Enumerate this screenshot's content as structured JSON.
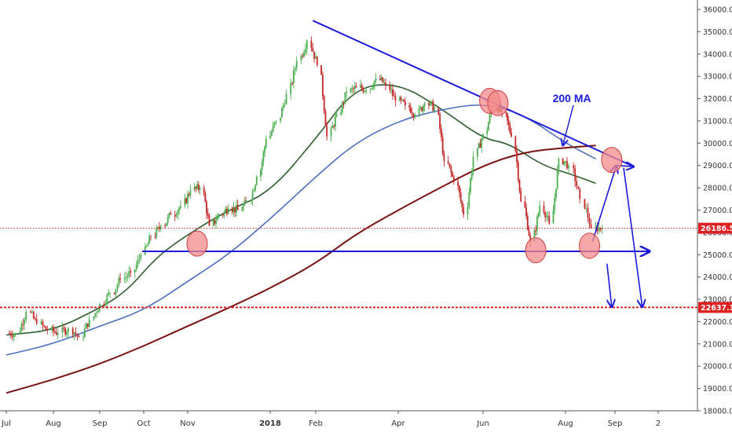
{
  "chart_data": {
    "type": "candlestick",
    "title": "",
    "xlabel": "",
    "ylabel": "",
    "ylim": [
      18000,
      36250
    ],
    "x_range": [
      "2017-07-01",
      "2018-09-25"
    ],
    "x_ticks": [
      {
        "label": "Jul",
        "date": "2017-07-01"
      },
      {
        "label": "Aug",
        "date": "2017-08-01"
      },
      {
        "label": "Sep",
        "date": "2017-09-01"
      },
      {
        "label": "Oct",
        "date": "2017-10-01"
      },
      {
        "label": "Nov",
        "date": "2017-11-01"
      },
      {
        "label": "2018",
        "date": "2018-01-01",
        "bold": true
      },
      {
        "label": "Feb",
        "date": "2018-02-01"
      },
      {
        "label": "Apr",
        "date": "2018-04-01"
      },
      {
        "label": "Jun",
        "date": "2018-06-01"
      },
      {
        "label": "Aug",
        "date": "2018-08-01"
      },
      {
        "label": "Sep",
        "date": "2018-09-01"
      },
      {
        "label": "2",
        "date": "2018-10-01"
      }
    ],
    "y_ticks": [
      18000,
      19000,
      20000,
      21000,
      22000,
      23000,
      24000,
      25000,
      26000,
      27000,
      28000,
      29000,
      30000,
      31000,
      32000,
      33000,
      34000,
      35000,
      36000
    ],
    "colors": {
      "up": "#4caf50",
      "down": "#c62828",
      "trend": "#1a1adb",
      "ma_short": "#2e5e2e",
      "ma_mid": "#4a6fc0",
      "ma_200": "#7a1010",
      "level": "#e02020",
      "circle_fill": "#f48a8a",
      "circle_stroke": "#d04040"
    },
    "close_series": [
      [
        "2017-07-03",
        21480
      ],
      [
        "2017-07-10",
        22450
      ],
      [
        "2017-07-17",
        21900
      ],
      [
        "2017-07-24",
        21600
      ],
      [
        "2017-07-31",
        21500
      ],
      [
        "2017-08-07",
        21700
      ],
      [
        "2017-08-14",
        21300
      ],
      [
        "2017-08-21",
        22100
      ],
      [
        "2017-08-28",
        22800
      ],
      [
        "2017-09-04",
        23300
      ],
      [
        "2017-09-11",
        23900
      ],
      [
        "2017-09-18",
        24200
      ],
      [
        "2017-09-25",
        25000
      ],
      [
        "2017-10-02",
        25800
      ],
      [
        "2017-10-09",
        26300
      ],
      [
        "2017-10-16",
        26800
      ],
      [
        "2017-10-23",
        27200
      ],
      [
        "2017-10-30",
        27900
      ],
      [
        "2017-11-06",
        28000
      ],
      [
        "2017-11-13",
        26300
      ],
      [
        "2017-11-20",
        26800
      ],
      [
        "2017-11-27",
        27100
      ],
      [
        "2017-12-04",
        27000
      ],
      [
        "2017-12-11",
        27400
      ],
      [
        "2017-12-18",
        28500
      ],
      [
        "2017-12-25",
        30200
      ],
      [
        "2018-01-01",
        31000
      ],
      [
        "2018-01-08",
        32200
      ],
      [
        "2018-01-15",
        33700
      ],
      [
        "2018-01-22",
        34600
      ],
      [
        "2018-01-29",
        33500
      ],
      [
        "2018-02-05",
        30300
      ],
      [
        "2018-02-12",
        31300
      ],
      [
        "2018-02-19",
        32300
      ],
      [
        "2018-02-26",
        32500
      ],
      [
        "2018-03-05",
        32400
      ],
      [
        "2018-03-12",
        32900
      ],
      [
        "2018-03-19",
        32600
      ],
      [
        "2018-03-26",
        31900
      ],
      [
        "2018-04-02",
        31700
      ],
      [
        "2018-04-09",
        31300
      ],
      [
        "2018-04-16",
        31800
      ],
      [
        "2018-04-23",
        31600
      ],
      [
        "2018-04-30",
        29200
      ],
      [
        "2018-05-07",
        28300
      ],
      [
        "2018-05-14",
        26800
      ],
      [
        "2018-05-21",
        29400
      ],
      [
        "2018-05-28",
        30400
      ],
      [
        "2018-06-04",
        31700
      ],
      [
        "2018-06-11",
        31400
      ],
      [
        "2018-06-18",
        30300
      ],
      [
        "2018-06-25",
        27400
      ],
      [
        "2018-07-02",
        25600
      ],
      [
        "2018-07-09",
        27200
      ],
      [
        "2018-07-16",
        26400
      ],
      [
        "2018-07-23",
        29300
      ],
      [
        "2018-07-30",
        29000
      ],
      [
        "2018-08-06",
        27500
      ],
      [
        "2018-08-13",
        26200
      ],
      [
        "2018-08-20",
        26186.55
      ]
    ],
    "moving_averages": [
      {
        "name": "",
        "color": "#2e5e2e",
        "values": [
          [
            "2017-07-01",
            21400
          ],
          [
            "2017-08-01",
            21600
          ],
          [
            "2017-09-01",
            22600
          ],
          [
            "2017-09-20",
            23400
          ],
          [
            "2017-10-10",
            24900
          ],
          [
            "2017-11-01",
            25900
          ],
          [
            "2017-12-01",
            27000
          ],
          [
            "2018-01-01",
            27800
          ],
          [
            "2018-02-01",
            30200
          ],
          [
            "2018-03-01",
            32500
          ],
          [
            "2018-04-01",
            32700
          ],
          [
            "2018-05-01",
            31600
          ],
          [
            "2018-06-01",
            30200
          ],
          [
            "2018-06-20",
            30000
          ],
          [
            "2018-07-15",
            29000
          ],
          [
            "2018-08-05",
            28600
          ],
          [
            "2018-08-20",
            28200
          ]
        ]
      },
      {
        "name": "",
        "color": "#4a6fc0",
        "values": [
          [
            "2017-07-01",
            20500
          ],
          [
            "2017-08-01",
            21000
          ],
          [
            "2017-09-01",
            21800
          ],
          [
            "2017-10-01",
            22500
          ],
          [
            "2017-11-01",
            23800
          ],
          [
            "2017-12-01",
            25000
          ],
          [
            "2018-01-01",
            26600
          ],
          [
            "2018-02-01",
            28500
          ],
          [
            "2018-03-01",
            30000
          ],
          [
            "2018-04-01",
            31000
          ],
          [
            "2018-05-01",
            31500
          ],
          [
            "2018-06-01",
            31800
          ],
          [
            "2018-07-01",
            31300
          ],
          [
            "2018-08-01",
            30000
          ],
          [
            "2018-08-20",
            29300
          ]
        ]
      },
      {
        "name": "200 MA",
        "color": "#7a1010",
        "values": [
          [
            "2017-07-01",
            18800
          ],
          [
            "2017-08-01",
            19400
          ],
          [
            "2017-09-01",
            20100
          ],
          [
            "2017-10-01",
            20900
          ],
          [
            "2017-11-01",
            21800
          ],
          [
            "2017-12-01",
            22600
          ],
          [
            "2018-01-01",
            23500
          ],
          [
            "2018-02-01",
            24600
          ],
          [
            "2018-03-01",
            25900
          ],
          [
            "2018-04-01",
            27000
          ],
          [
            "2018-05-01",
            28000
          ],
          [
            "2018-06-01",
            29000
          ],
          [
            "2018-07-01",
            29600
          ],
          [
            "2018-08-01",
            29800
          ],
          [
            "2018-08-20",
            29900
          ]
        ]
      }
    ],
    "trend_lines": [
      {
        "from": [
          "2018-01-30",
          35500
        ],
        "to": [
          "2018-09-14",
          28950
        ]
      },
      {
        "from": [
          "2017-09-30",
          25150
        ],
        "to": [
          "2018-09-25",
          25150
        ],
        "arrow": true
      }
    ],
    "horizontal_levels": [
      {
        "value": 26186.55,
        "label": "26186.55",
        "style": "dotted"
      },
      {
        "value": 22637.14,
        "label": "22637.14",
        "style": "dashed-thick"
      }
    ],
    "highlight_circles": [
      [
        "2017-11-08",
        25500
      ],
      [
        "2018-06-06",
        31900
      ],
      [
        "2018-06-12",
        31800
      ],
      [
        "2018-07-10",
        25200
      ],
      [
        "2018-08-16",
        25400
      ],
      [
        "2018-08-30",
        29250
      ]
    ],
    "projection_arrows": [
      {
        "from": [
          "2018-08-18",
          25600
        ],
        "to": [
          "2018-09-02",
          29000
        ]
      },
      {
        "from": [
          "2018-09-02",
          29000
        ],
        "to": [
          "2018-09-14",
          28950
        ]
      },
      {
        "from": [
          "2018-09-07",
          28900
        ],
        "to": [
          "2018-09-20",
          22650
        ]
      },
      {
        "from": [
          "2018-08-27",
          24600
        ],
        "to": [
          "2018-08-30",
          22650
        ]
      }
    ],
    "annotations": [
      {
        "text": "200 MA",
        "at": [
          "2018-08-05",
          31850
        ],
        "arrow_to": [
          "2018-07-30",
          29900
        ]
      }
    ]
  }
}
